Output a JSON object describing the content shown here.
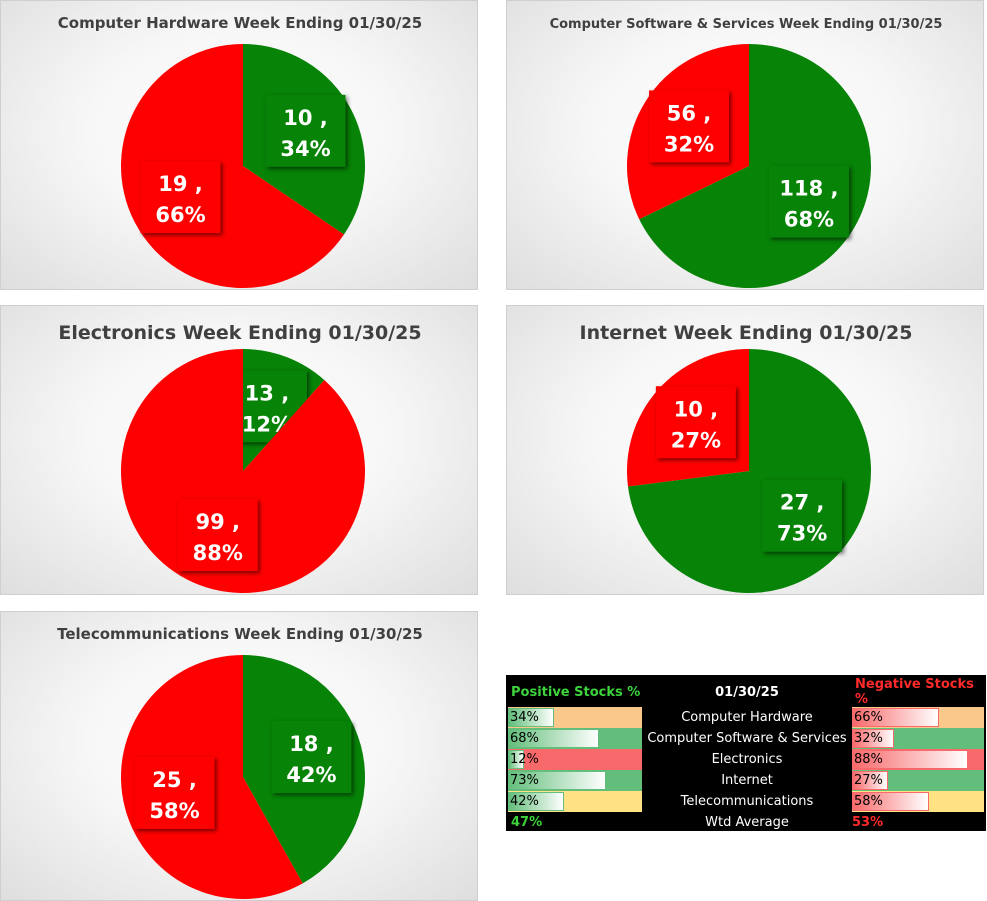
{
  "chart_data": [
    {
      "type": "pie",
      "title": "Computer Hardware Week Ending 01/30/25",
      "slices": [
        {
          "label": "Positive",
          "value": 10,
          "percent": "34%",
          "color": "#078307"
        },
        {
          "label": "Negative",
          "value": 19,
          "percent": "66%",
          "color": "#ff0000"
        }
      ]
    },
    {
      "type": "pie",
      "title": "Computer Software & Services Week Ending 01/30/25",
      "slices": [
        {
          "label": "Positive",
          "value": 118,
          "percent": "68%",
          "color": "#078307"
        },
        {
          "label": "Negative",
          "value": 56,
          "percent": "32%",
          "color": "#ff0000"
        }
      ]
    },
    {
      "type": "pie",
      "title": "Electronics Week Ending 01/30/25",
      "slices": [
        {
          "label": "Positive",
          "value": 13,
          "percent": "12%",
          "color": "#078307"
        },
        {
          "label": "Negative",
          "value": 99,
          "percent": "88%",
          "color": "#ff0000"
        }
      ]
    },
    {
      "type": "pie",
      "title": "Internet Week Ending 01/30/25",
      "slices": [
        {
          "label": "Positive",
          "value": 27,
          "percent": "73%",
          "color": "#078307"
        },
        {
          "label": "Negative",
          "value": 10,
          "percent": "27%",
          "color": "#ff0000"
        }
      ]
    },
    {
      "type": "pie",
      "title": "Telecommunications Week Ending 01/30/25",
      "slices": [
        {
          "label": "Positive",
          "value": 18,
          "percent": "42%",
          "color": "#078307"
        },
        {
          "label": "Negative",
          "value": 25,
          "percent": "58%",
          "color": "#ff0000"
        }
      ]
    }
  ],
  "summary": {
    "positive_header": "Positive Stocks %",
    "date": "01/30/25",
    "negative_header": "Negative Stocks %",
    "rows": [
      {
        "sector": "Computer Hardware",
        "pos": "34%",
        "neg": "66%",
        "pos_frac": 0.34,
        "neg_frac": 0.66,
        "pos_bg": "#f9c88a",
        "neg_bg": "#f9c88a"
      },
      {
        "sector": "Computer Software & Services",
        "pos": "68%",
        "neg": "32%",
        "pos_frac": 0.68,
        "neg_frac": 0.32,
        "pos_bg": "#63be7b",
        "neg_bg": "#63be7b"
      },
      {
        "sector": "Electronics",
        "pos": "12%",
        "neg": "88%",
        "pos_frac": 0.12,
        "neg_frac": 0.88,
        "pos_bg": "#f8696b",
        "neg_bg": "#f8696b"
      },
      {
        "sector": "Internet",
        "pos": "73%",
        "neg": "27%",
        "pos_frac": 0.73,
        "neg_frac": 0.27,
        "pos_bg": "#63be7b",
        "neg_bg": "#63be7b"
      },
      {
        "sector": "Telecommunications",
        "pos": "42%",
        "neg": "58%",
        "pos_frac": 0.42,
        "neg_frac": 0.58,
        "pos_bg": "#ffe283",
        "neg_bg": "#ffe283"
      }
    ],
    "avg_label": "Wtd Average",
    "avg_pos": "47%",
    "avg_neg": "53%"
  }
}
